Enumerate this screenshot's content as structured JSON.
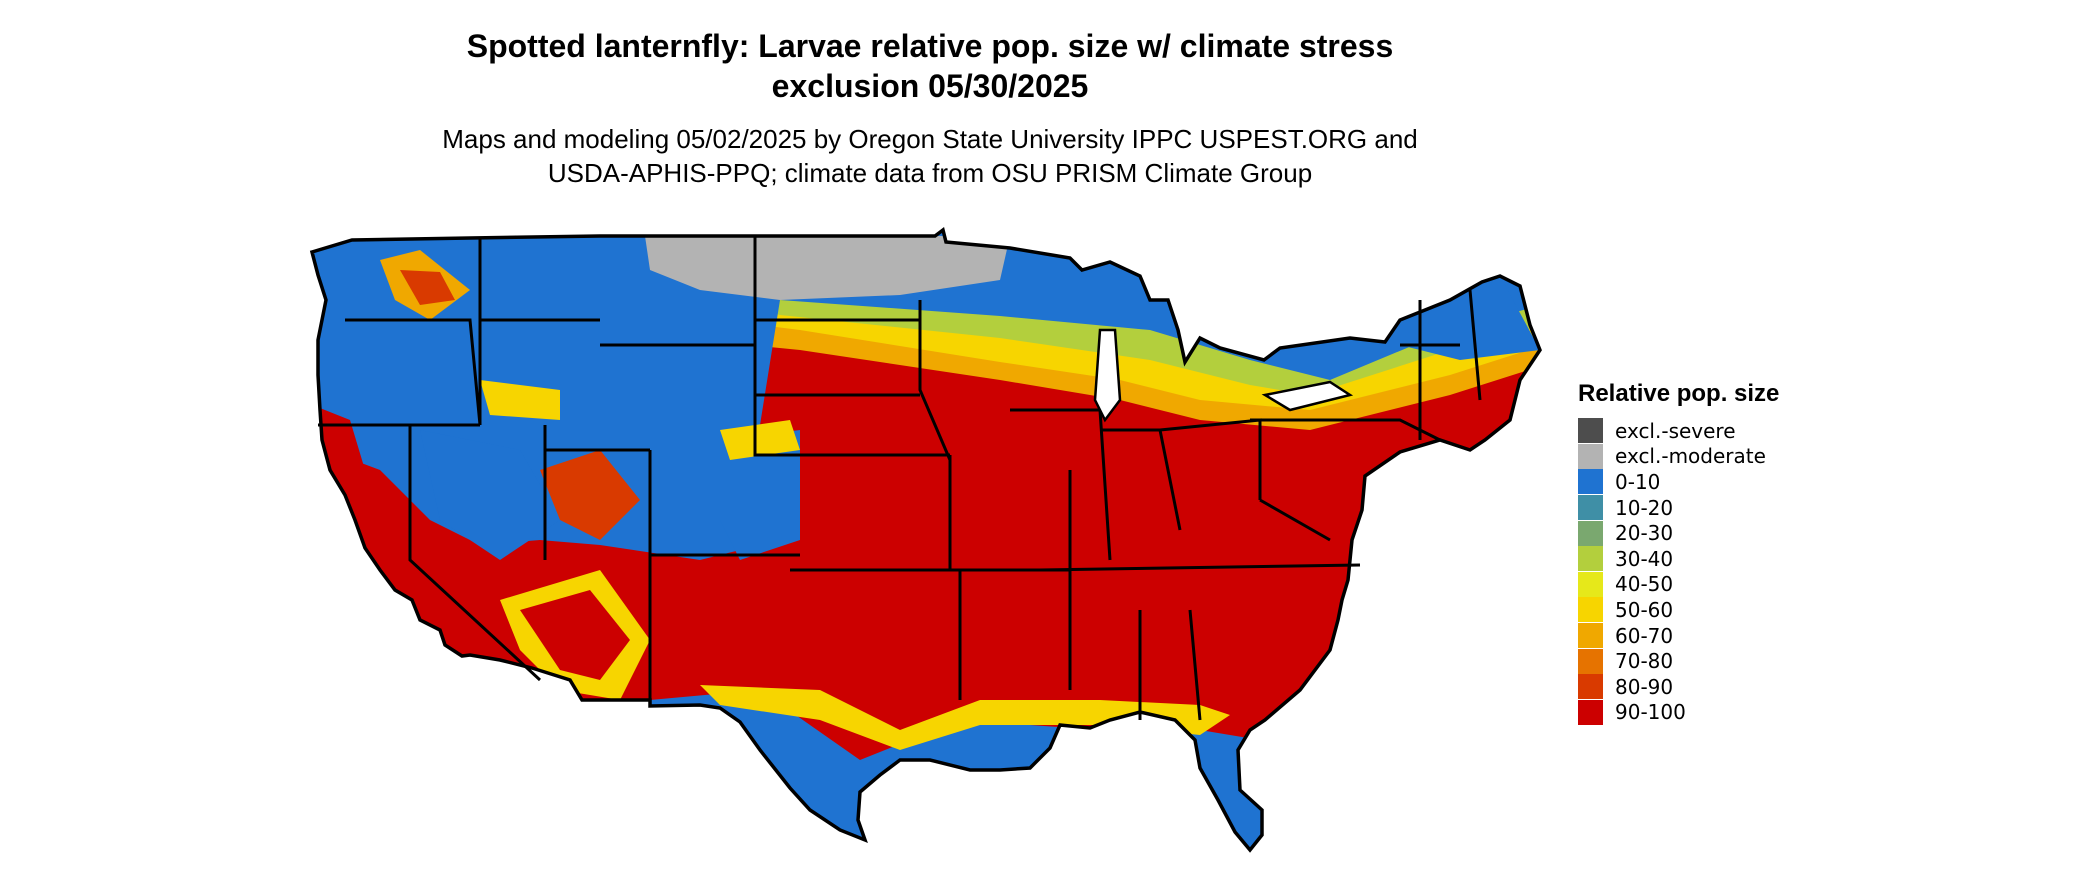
{
  "title_line1": "Spotted lanternfly: Larvae relative pop. size w/ climate stress",
  "title_line2": "exclusion 05/30/2025",
  "subtitle_line1": "Maps and modeling 05/02/2025 by Oregon State University IPPC USPEST.ORG and",
  "subtitle_line2": "USDA-APHIS-PPQ; climate data from OSU PRISM Climate Group",
  "map": {
    "region": "contiguous-united-states",
    "boundaries": "state-outlines"
  },
  "legend": {
    "title": "Relative pop. size",
    "items": [
      {
        "label": "excl.-severe",
        "color": "#4d4d4d"
      },
      {
        "label": "excl.-moderate",
        "color": "#b3b3b3"
      },
      {
        "label": "0-10",
        "color": "#1f73d1"
      },
      {
        "label": "10-20",
        "color": "#3f8fa6"
      },
      {
        "label": "20-30",
        "color": "#7aa86f"
      },
      {
        "label": "30-40",
        "color": "#b3cf3d"
      },
      {
        "label": "40-50",
        "color": "#e6e81a"
      },
      {
        "label": "50-60",
        "color": "#f7d500"
      },
      {
        "label": "60-70",
        "color": "#f0a800"
      },
      {
        "label": "70-80",
        "color": "#e67300"
      },
      {
        "label": "80-90",
        "color": "#d93a00"
      },
      {
        "label": "90-100",
        "color": "#cc0000"
      }
    ]
  }
}
